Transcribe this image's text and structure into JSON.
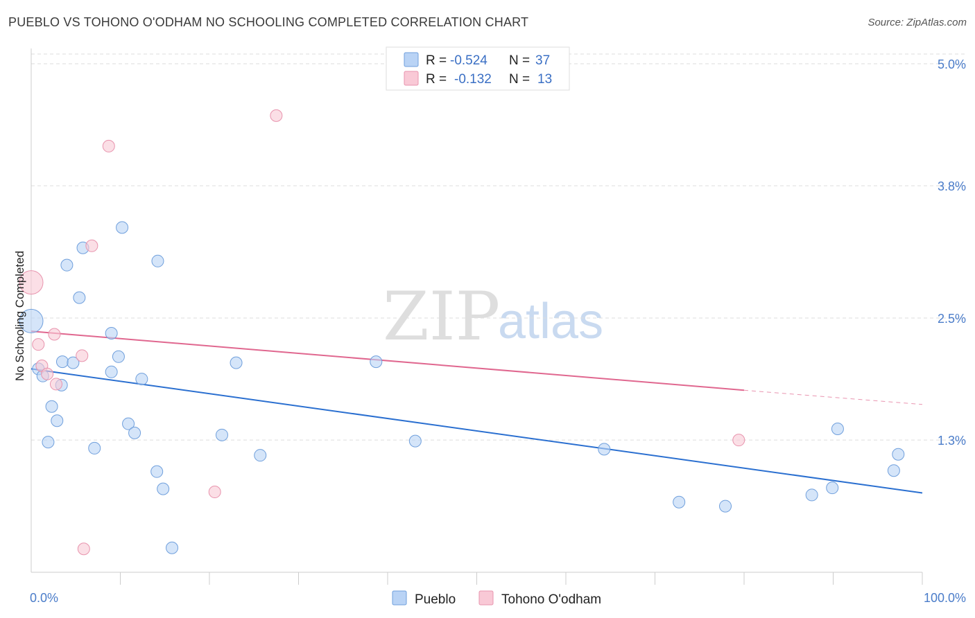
{
  "header": {
    "title": "PUEBLO VS TOHONO O'ODHAM NO SCHOOLING COMPLETED CORRELATION CHART",
    "source": "Source: ZipAtlas.com"
  },
  "colors": {
    "pueblo_fill": "#b9d3f5",
    "pueblo_stroke": "#6f9fdc",
    "pueblo_line": "#2a6fd0",
    "tohono_fill": "#f9c9d6",
    "tohono_stroke": "#e893ad",
    "tohono_line": "#e0678f",
    "tick_text": "#4a7cc9",
    "grid": "#dddddd"
  },
  "legend": {
    "row1": {
      "r_label": "R =",
      "r_value": "-0.524",
      "n_label": "N =",
      "n_value": "37"
    },
    "row2": {
      "r_label": "R =",
      "r_value": "-0.132",
      "n_label": "N =",
      "n_value": "13"
    }
  },
  "watermark": {
    "zip": "ZIP",
    "atlas": "atlas"
  },
  "chart_data": {
    "type": "scatter",
    "title": "PUEBLO VS TOHONO O'ODHAM NO SCHOOLING COMPLETED CORRELATION CHART",
    "xlabel": "",
    "ylabel": "No Schooling Completed",
    "xlim": [
      0,
      100
    ],
    "ylim": [
      0,
      5.15
    ],
    "x_tick_labels": [
      "0.0%",
      "100.0%"
    ],
    "y_ticks": [
      1.3,
      2.5,
      3.8,
      5.0
    ],
    "y_tick_labels": [
      "1.3%",
      "2.5%",
      "3.8%",
      "5.0%"
    ],
    "grid": true,
    "legend_placement": "bottom-center",
    "series": [
      {
        "name": "Pueblo",
        "r": -0.524,
        "n": 37,
        "trend": {
          "x0": 0,
          "y0": 2.0,
          "x1": 100,
          "y1": 0.78
        },
        "points": [
          {
            "x": 0.0,
            "y": 2.47,
            "big": true
          },
          {
            "x": 0.8,
            "y": 2.0
          },
          {
            "x": 1.3,
            "y": 1.93
          },
          {
            "x": 1.9,
            "y": 1.28
          },
          {
            "x": 2.3,
            "y": 1.63
          },
          {
            "x": 2.9,
            "y": 1.49
          },
          {
            "x": 3.4,
            "y": 1.84
          },
          {
            "x": 3.5,
            "y": 2.07
          },
          {
            "x": 4.0,
            "y": 3.02
          },
          {
            "x": 4.7,
            "y": 2.06
          },
          {
            "x": 5.4,
            "y": 2.7
          },
          {
            "x": 5.8,
            "y": 3.19
          },
          {
            "x": 7.1,
            "y": 1.22
          },
          {
            "x": 9.0,
            "y": 2.35
          },
          {
            "x": 9.0,
            "y": 1.97
          },
          {
            "x": 9.8,
            "y": 2.12
          },
          {
            "x": 10.2,
            "y": 3.39
          },
          {
            "x": 10.9,
            "y": 1.46
          },
          {
            "x": 11.6,
            "y": 1.37
          },
          {
            "x": 12.4,
            "y": 1.9
          },
          {
            "x": 14.1,
            "y": 0.99
          },
          {
            "x": 14.2,
            "y": 3.06
          },
          {
            "x": 14.8,
            "y": 0.82
          },
          {
            "x": 15.8,
            "y": 0.24
          },
          {
            "x": 21.4,
            "y": 1.35
          },
          {
            "x": 23.0,
            "y": 2.06
          },
          {
            "x": 25.7,
            "y": 1.15
          },
          {
            "x": 38.7,
            "y": 2.07
          },
          {
            "x": 43.1,
            "y": 1.29
          },
          {
            "x": 64.3,
            "y": 1.21
          },
          {
            "x": 72.7,
            "y": 0.69
          },
          {
            "x": 77.9,
            "y": 0.65
          },
          {
            "x": 87.6,
            "y": 0.76
          },
          {
            "x": 89.9,
            "y": 0.83
          },
          {
            "x": 90.5,
            "y": 1.41
          },
          {
            "x": 96.8,
            "y": 1.0
          },
          {
            "x": 97.3,
            "y": 1.16
          }
        ]
      },
      {
        "name": "Tohono O'odham",
        "r": -0.132,
        "n": 13,
        "trend": {
          "x0": 0,
          "y0": 2.37,
          "x1": 80,
          "y1": 1.79,
          "dash_x1": 100,
          "dash_y1": 1.65
        },
        "points": [
          {
            "x": 0.0,
            "y": 2.85,
            "big": true
          },
          {
            "x": 0.8,
            "y": 2.24
          },
          {
            "x": 1.2,
            "y": 2.03
          },
          {
            "x": 1.8,
            "y": 1.95
          },
          {
            "x": 2.6,
            "y": 2.34
          },
          {
            "x": 2.8,
            "y": 1.85
          },
          {
            "x": 5.7,
            "y": 2.13
          },
          {
            "x": 5.9,
            "y": 0.23
          },
          {
            "x": 6.8,
            "y": 3.21
          },
          {
            "x": 8.7,
            "y": 4.19
          },
          {
            "x": 20.6,
            "y": 0.79
          },
          {
            "x": 27.5,
            "y": 4.49
          },
          {
            "x": 79.4,
            "y": 1.3
          }
        ]
      }
    ]
  }
}
